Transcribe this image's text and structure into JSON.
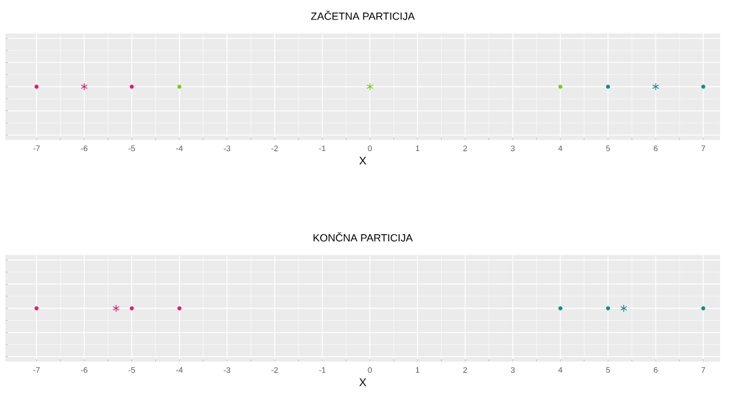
{
  "chart_data": [
    {
      "type": "scatter",
      "orientation": "horizontal",
      "title": "ZAČETNA PARTICIJA",
      "xlabel": "X",
      "categories": [
        null
      ],
      "xlim": [
        -7.65,
        7.35
      ],
      "xticks": [
        -7,
        -6,
        -5,
        -4,
        -3,
        -2,
        -1,
        0,
        1,
        2,
        3,
        4,
        5,
        6,
        7
      ],
      "grid": true,
      "series": [
        {
          "color": "#d81b7a",
          "marker": "circle",
          "values": [
            -7
          ]
        },
        {
          "color": "#d81b7a",
          "marker": "circle",
          "values": [
            -5
          ]
        },
        {
          "color": "#d81b7a",
          "marker": "cross",
          "values": [
            -6
          ]
        },
        {
          "color": "#6fd00f",
          "marker": "circle",
          "values": [
            -4
          ]
        },
        {
          "color": "#6fd00f",
          "marker": "circle",
          "values": [
            4
          ]
        },
        {
          "color": "#6fd00f",
          "marker": "cross",
          "values": [
            0
          ]
        },
        {
          "color": "#0e8a8c",
          "marker": "circle",
          "values": [
            5
          ]
        },
        {
          "color": "#0e8a8c",
          "marker": "circle",
          "values": [
            7
          ]
        },
        {
          "color": "#0e8a8c",
          "marker": "cross",
          "values": [
            6
          ]
        }
      ]
    },
    {
      "type": "scatter",
      "orientation": "horizontal",
      "title": "KONČNA PARTICIJA",
      "xlabel": "X",
      "categories": [
        null
      ],
      "xlim": [
        -7.65,
        7.35
      ],
      "xticks": [
        -7,
        -6,
        -5,
        -4,
        -3,
        -2,
        -1,
        0,
        1,
        2,
        3,
        4,
        5,
        6,
        7
      ],
      "grid": true,
      "series": [
        {
          "color": "#d81b7a",
          "marker": "circle",
          "values": [
            -7
          ]
        },
        {
          "color": "#d81b7a",
          "marker": "circle",
          "values": [
            -5
          ]
        },
        {
          "color": "#d81b7a",
          "marker": "circle",
          "values": [
            -4
          ]
        },
        {
          "color": "#d81b7a",
          "marker": "cross",
          "values": [
            -5.33
          ]
        },
        {
          "color": "#0e8a8c",
          "marker": "circle",
          "values": [
            4
          ]
        },
        {
          "color": "#0e8a8c",
          "marker": "circle",
          "values": [
            5
          ]
        },
        {
          "color": "#0e8a8c",
          "marker": "circle",
          "values": [
            7
          ]
        },
        {
          "color": "#0e8a8c",
          "marker": "cross",
          "values": [
            5.33
          ]
        }
      ]
    }
  ]
}
